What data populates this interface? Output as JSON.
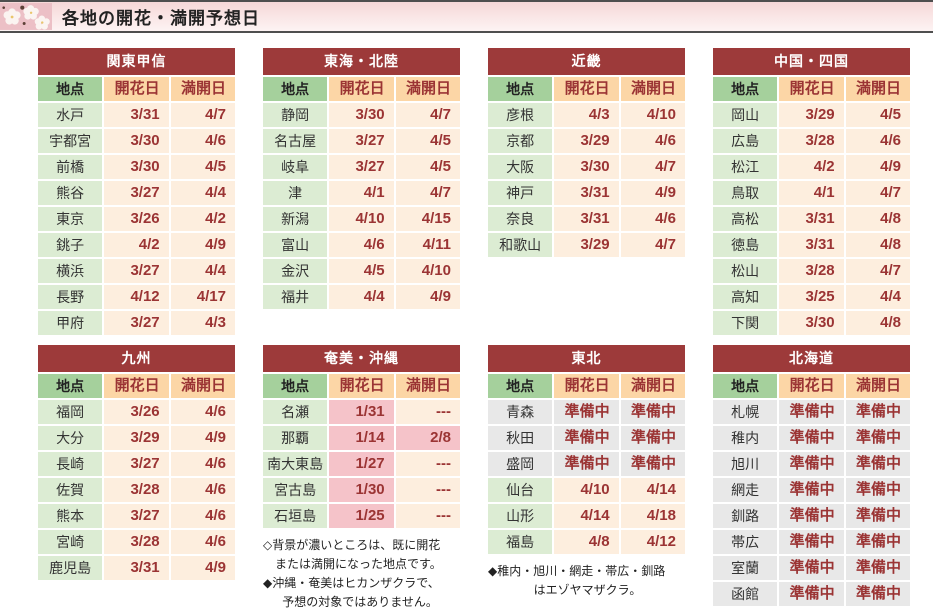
{
  "page": {
    "title": "各地の開花・満開予想日"
  },
  "columns": {
    "location": "地点",
    "flowering": "開花日",
    "full_bloom": "満開日"
  },
  "colors": {
    "region_header_bg": "#9d3a3a",
    "region_header_text": "#ffffff",
    "location_header_bg": "#a5d09c",
    "date_header_bg": "#fcd6a6",
    "location_cell_bg": "#dcecd3",
    "date_cell_bg": "#fdeede",
    "bloomed_cell_bg": "#f5c3c9",
    "preparing_cell_bg": "#e8e8e8",
    "date_text": "#9b3434",
    "header_bar_border": "#4f4f4f"
  },
  "icons": {
    "header_icon": "sakura-photo-icon"
  },
  "tables": [
    {
      "region": "関東甲信",
      "rows": [
        {
          "location": "水戸",
          "flowering": "3/31",
          "full_bloom": "4/7"
        },
        {
          "location": "宇都宮",
          "flowering": "3/30",
          "full_bloom": "4/6"
        },
        {
          "location": "前橋",
          "flowering": "3/30",
          "full_bloom": "4/5"
        },
        {
          "location": "熊谷",
          "flowering": "3/27",
          "full_bloom": "4/4"
        },
        {
          "location": "東京",
          "flowering": "3/26",
          "full_bloom": "4/2"
        },
        {
          "location": "銚子",
          "flowering": "4/2",
          "full_bloom": "4/9"
        },
        {
          "location": "横浜",
          "flowering": "3/27",
          "full_bloom": "4/4"
        },
        {
          "location": "長野",
          "flowering": "4/12",
          "full_bloom": "4/17"
        },
        {
          "location": "甲府",
          "flowering": "3/27",
          "full_bloom": "4/3"
        }
      ]
    },
    {
      "region": "東海・北陸",
      "rows": [
        {
          "location": "静岡",
          "flowering": "3/30",
          "full_bloom": "4/7"
        },
        {
          "location": "名古屋",
          "flowering": "3/27",
          "full_bloom": "4/5"
        },
        {
          "location": "岐阜",
          "flowering": "3/27",
          "full_bloom": "4/5"
        },
        {
          "location": "津",
          "flowering": "4/1",
          "full_bloom": "4/7"
        },
        {
          "location": "新潟",
          "flowering": "4/10",
          "full_bloom": "4/15"
        },
        {
          "location": "富山",
          "flowering": "4/6",
          "full_bloom": "4/11"
        },
        {
          "location": "金沢",
          "flowering": "4/5",
          "full_bloom": "4/10"
        },
        {
          "location": "福井",
          "flowering": "4/4",
          "full_bloom": "4/9"
        }
      ]
    },
    {
      "region": "近畿",
      "rows": [
        {
          "location": "彦根",
          "flowering": "4/3",
          "full_bloom": "4/10"
        },
        {
          "location": "京都",
          "flowering": "3/29",
          "full_bloom": "4/6"
        },
        {
          "location": "大阪",
          "flowering": "3/30",
          "full_bloom": "4/7"
        },
        {
          "location": "神戸",
          "flowering": "3/31",
          "full_bloom": "4/9"
        },
        {
          "location": "奈良",
          "flowering": "3/31",
          "full_bloom": "4/6"
        },
        {
          "location": "和歌山",
          "flowering": "3/29",
          "full_bloom": "4/7"
        }
      ]
    },
    {
      "region": "中国・四国",
      "rows": [
        {
          "location": "岡山",
          "flowering": "3/29",
          "full_bloom": "4/5"
        },
        {
          "location": "広島",
          "flowering": "3/28",
          "full_bloom": "4/6"
        },
        {
          "location": "松江",
          "flowering": "4/2",
          "full_bloom": "4/9"
        },
        {
          "location": "鳥取",
          "flowering": "4/1",
          "full_bloom": "4/7"
        },
        {
          "location": "高松",
          "flowering": "3/31",
          "full_bloom": "4/8"
        },
        {
          "location": "徳島",
          "flowering": "3/31",
          "full_bloom": "4/8"
        },
        {
          "location": "松山",
          "flowering": "3/28",
          "full_bloom": "4/7"
        },
        {
          "location": "高知",
          "flowering": "3/25",
          "full_bloom": "4/4"
        },
        {
          "location": "下関",
          "flowering": "3/30",
          "full_bloom": "4/8"
        }
      ]
    },
    {
      "region": "九州",
      "rows": [
        {
          "location": "福岡",
          "flowering": "3/26",
          "full_bloom": "4/6"
        },
        {
          "location": "大分",
          "flowering": "3/29",
          "full_bloom": "4/9"
        },
        {
          "location": "長崎",
          "flowering": "3/27",
          "full_bloom": "4/6"
        },
        {
          "location": "佐賀",
          "flowering": "3/28",
          "full_bloom": "4/6"
        },
        {
          "location": "熊本",
          "flowering": "3/27",
          "full_bloom": "4/6"
        },
        {
          "location": "宮崎",
          "flowering": "3/28",
          "full_bloom": "4/6"
        },
        {
          "location": "鹿児島",
          "flowering": "3/31",
          "full_bloom": "4/9"
        }
      ]
    },
    {
      "region": "奄美・沖縄",
      "rows": [
        {
          "location": "名瀬",
          "flowering": "1/31",
          "fl_state": "bloomed",
          "full_bloom": "---"
        },
        {
          "location": "那覇",
          "flowering": "1/14",
          "fl_state": "bloomed",
          "full_bloom": "2/8",
          "fb_state": "bloomed"
        },
        {
          "location": "南大東島",
          "flowering": "1/27",
          "fl_state": "bloomed",
          "full_bloom": "---"
        },
        {
          "location": "宮古島",
          "flowering": "1/30",
          "fl_state": "bloomed",
          "full_bloom": "---"
        },
        {
          "location": "石垣島",
          "flowering": "1/25",
          "fl_state": "bloomed",
          "full_bloom": "---"
        }
      ],
      "notes": [
        {
          "text": "◇背景が濃いところは、既に開花",
          "indent": 0
        },
        {
          "text": "または満開になった地点です。",
          "indent": 1
        },
        {
          "text": "◆沖縄・奄美はヒカンザクラで、",
          "indent": 0
        },
        {
          "text": "予想の対象ではありません。",
          "indent": 1.6
        }
      ]
    },
    {
      "region": "東北",
      "rows": [
        {
          "location": "青森",
          "flowering": "準備中",
          "full_bloom": "準備中",
          "row_state": "preparing"
        },
        {
          "location": "秋田",
          "flowering": "準備中",
          "full_bloom": "準備中",
          "row_state": "preparing"
        },
        {
          "location": "盛岡",
          "flowering": "準備中",
          "full_bloom": "準備中",
          "row_state": "preparing"
        },
        {
          "location": "仙台",
          "flowering": "4/10",
          "full_bloom": "4/14"
        },
        {
          "location": "山形",
          "flowering": "4/14",
          "full_bloom": "4/18"
        },
        {
          "location": "福島",
          "flowering": "4/8",
          "full_bloom": "4/12"
        }
      ],
      "notes": [
        {
          "text": "◆稚内・旭川・網走・帯広・釧路",
          "indent": 0
        },
        {
          "text": "はエゾヤマザクラ。",
          "indent": 3.8
        }
      ]
    },
    {
      "region": "北海道",
      "rows": [
        {
          "location": "札幌",
          "flowering": "準備中",
          "full_bloom": "準備中",
          "row_state": "preparing"
        },
        {
          "location": "稚内",
          "flowering": "準備中",
          "full_bloom": "準備中",
          "row_state": "preparing"
        },
        {
          "location": "旭川",
          "flowering": "準備中",
          "full_bloom": "準備中",
          "row_state": "preparing"
        },
        {
          "location": "網走",
          "flowering": "準備中",
          "full_bloom": "準備中",
          "row_state": "preparing"
        },
        {
          "location": "釧路",
          "flowering": "準備中",
          "full_bloom": "準備中",
          "row_state": "preparing"
        },
        {
          "location": "帯広",
          "flowering": "準備中",
          "full_bloom": "準備中",
          "row_state": "preparing"
        },
        {
          "location": "室蘭",
          "flowering": "準備中",
          "full_bloom": "準備中",
          "row_state": "preparing"
        },
        {
          "location": "函館",
          "flowering": "準備中",
          "full_bloom": "準備中",
          "row_state": "preparing"
        }
      ]
    }
  ]
}
